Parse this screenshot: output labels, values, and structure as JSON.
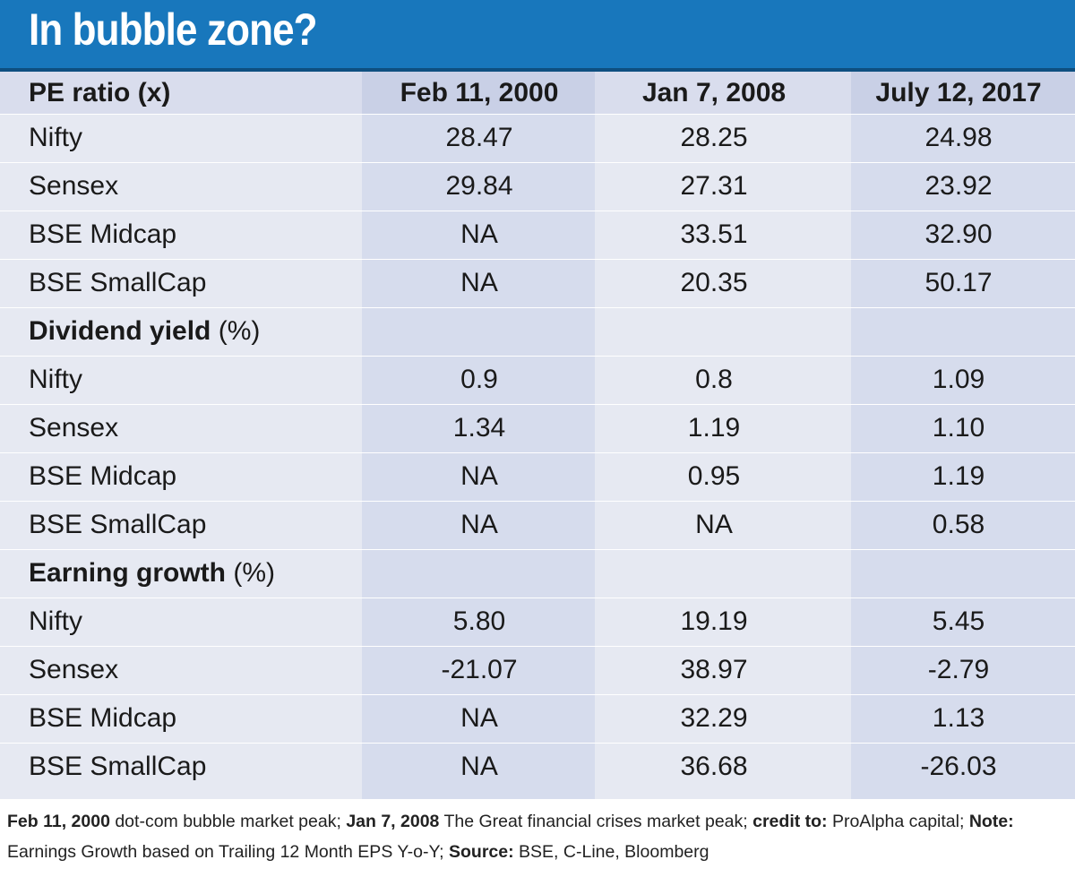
{
  "title": "In bubble zone?",
  "chart_data": {
    "type": "table",
    "title": "In bubble zone?",
    "columns": [
      "Feb 11, 2000",
      "Jan 7, 2008",
      "July 12, 2017"
    ],
    "sections": [
      {
        "name": "PE ratio",
        "unit": "(x)",
        "rows": [
          {
            "label": "Nifty",
            "values": [
              "28.47",
              "28.25",
              "24.98"
            ]
          },
          {
            "label": "Sensex",
            "values": [
              "29.84",
              "27.31",
              "23.92"
            ]
          },
          {
            "label": "BSE Midcap",
            "values": [
              "NA",
              "33.51",
              "32.90"
            ]
          },
          {
            "label": "BSE SmallCap",
            "values": [
              "NA",
              "20.35",
              "50.17"
            ]
          }
        ]
      },
      {
        "name": "Dividend yield",
        "unit": "(%)",
        "rows": [
          {
            "label": "Nifty",
            "values": [
              "0.9",
              "0.8",
              "1.09"
            ]
          },
          {
            "label": "Sensex",
            "values": [
              "1.34",
              "1.19",
              "1.10"
            ]
          },
          {
            "label": "BSE Midcap",
            "values": [
              "NA",
              "0.95",
              "1.19"
            ]
          },
          {
            "label": "BSE SmallCap",
            "values": [
              "NA",
              "NA",
              "0.58"
            ]
          }
        ]
      },
      {
        "name": "Earning growth",
        "unit": "(%)",
        "rows": [
          {
            "label": "Nifty",
            "values": [
              "5.80",
              "19.19",
              "5.45"
            ]
          },
          {
            "label": "Sensex",
            "values": [
              "-21.07",
              "38.97",
              "-2.79"
            ]
          },
          {
            "label": "BSE Midcap",
            "values": [
              "NA",
              "32.29",
              "1.13"
            ]
          },
          {
            "label": "BSE SmallCap",
            "values": [
              "NA",
              "36.68",
              "-26.03"
            ]
          }
        ]
      }
    ]
  },
  "footnote": {
    "parts": [
      {
        "bold": true,
        "text": "Feb 11, 2000"
      },
      {
        "bold": false,
        "text": " dot-com bubble market peak; "
      },
      {
        "bold": true,
        "text": "Jan 7, 2008"
      },
      {
        "bold": false,
        "text": " The Great financial crises market peak; "
      },
      {
        "bold": true,
        "text": "credit to:"
      },
      {
        "bold": false,
        "text": " ProAlpha capital; "
      },
      {
        "bold": true,
        "text": "Note:"
      },
      {
        "bold": false,
        "text": " Earnings Growth based on Trailing 12 Month EPS Y-o-Y; "
      },
      {
        "bold": true,
        "text": "Source:"
      },
      {
        "bold": false,
        "text": " BSE, C-Line, Bloomberg"
      }
    ]
  },
  "colors": {
    "banner": "#1877bc",
    "table_bg": "#e6e9f2",
    "alt_column": "#d6dced"
  }
}
